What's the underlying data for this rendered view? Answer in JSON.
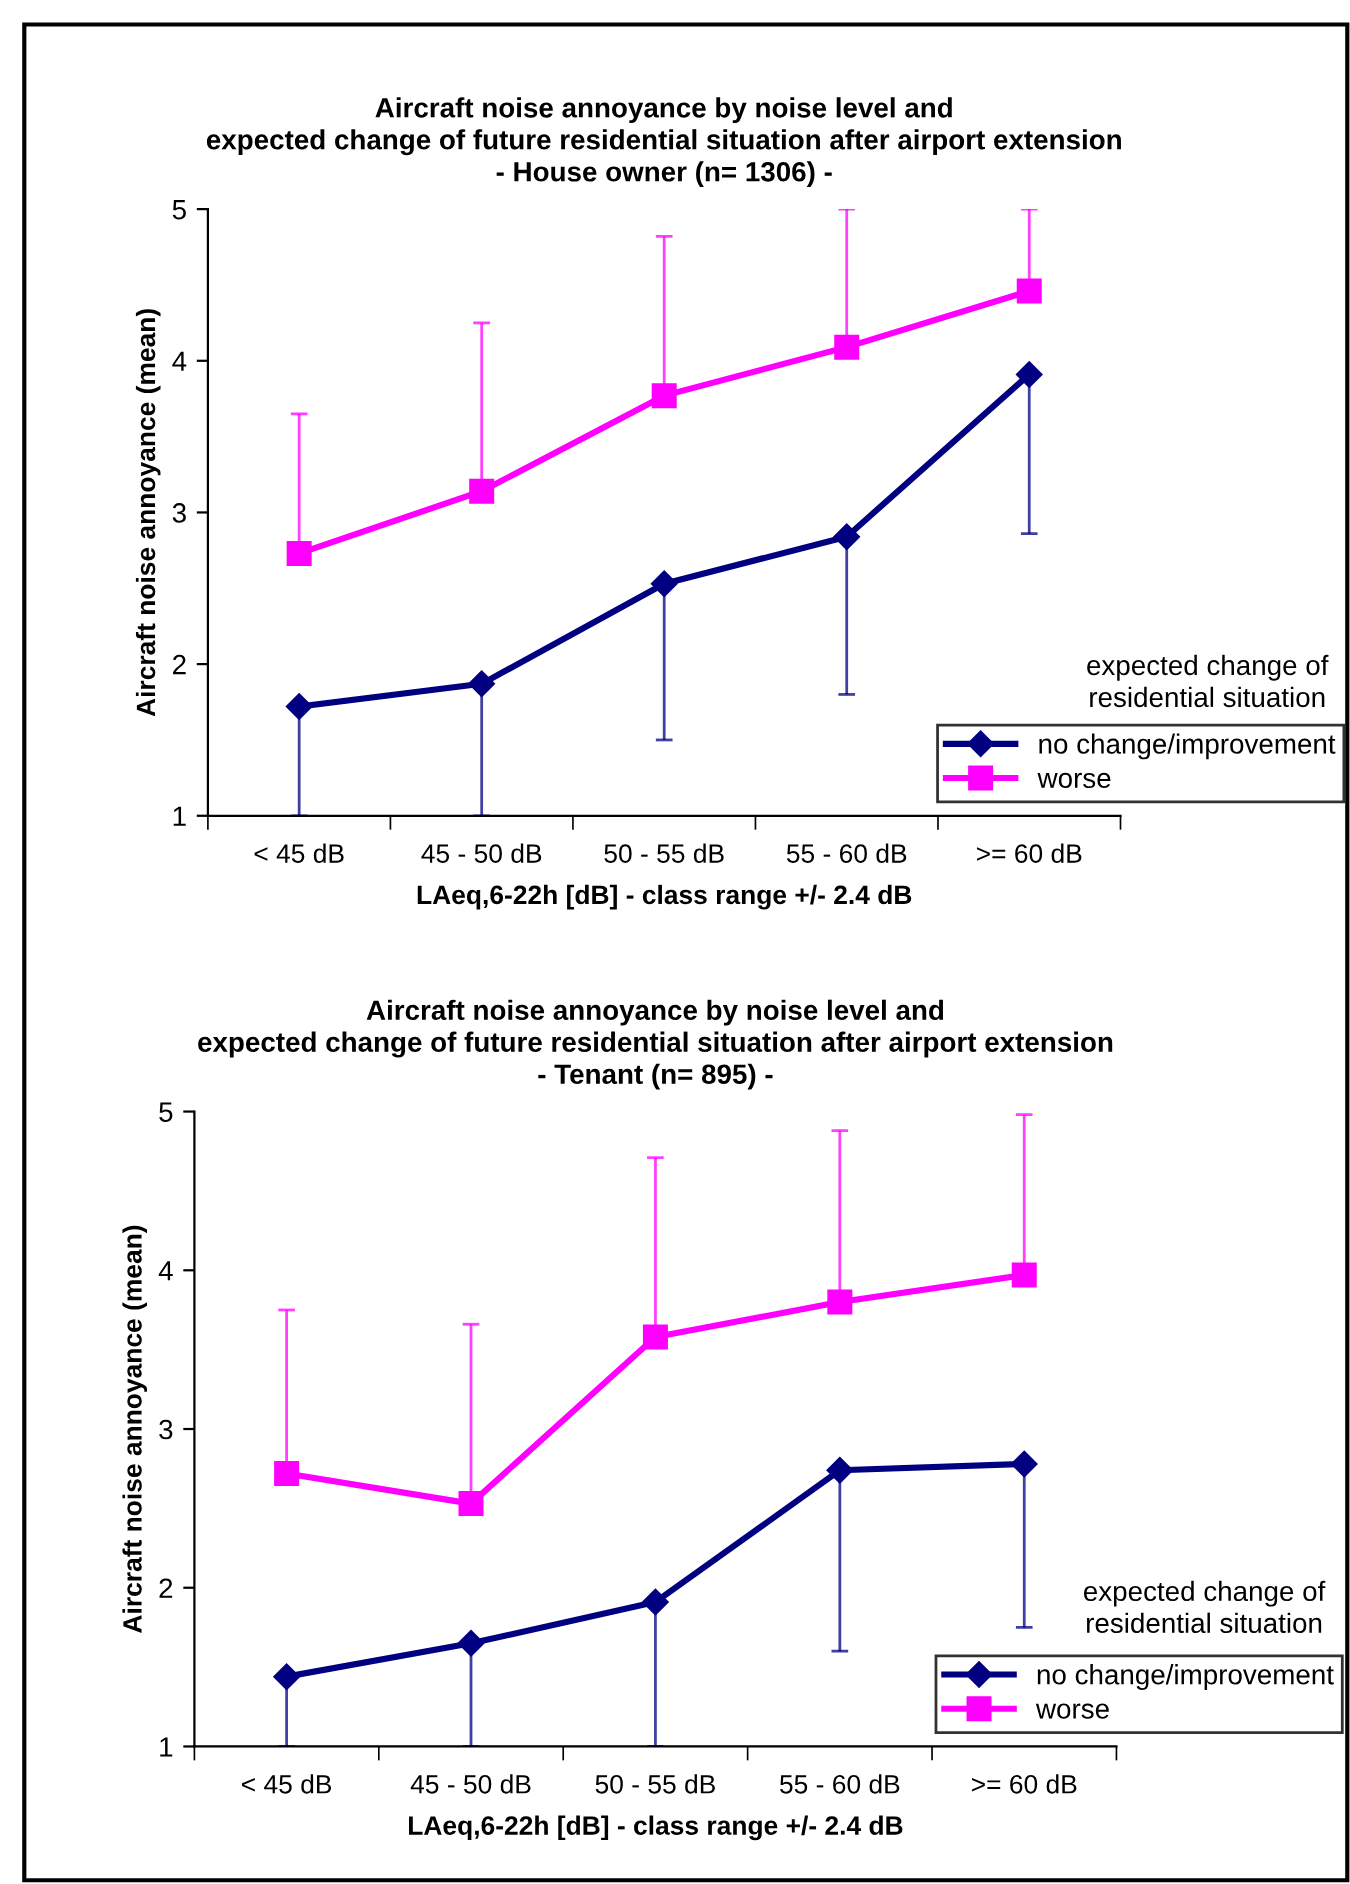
{
  "chart_data": [
    {
      "type": "line",
      "title": "Aircraft noise annoyance by noise level and\nexpected change of future residential situation after airport extension\n- House owner (n= 1306) -",
      "xlabel": "LAeq,6-22h [dB] - class range +/- 2.4 dB",
      "ylabel": "Aircraft noise annoyance (mean)",
      "legend_title": "expected change of\nresidential situation",
      "legend": "bottom right",
      "grid": false,
      "categories": [
        "< 45 dB",
        "45 - 50 dB",
        "50 - 55 dB",
        "55 - 60 dB",
        ">= 60 dB"
      ],
      "ylim": [
        1,
        5
      ],
      "yticks": [
        1,
        2,
        3,
        4,
        5
      ],
      "series": [
        {
          "name": "no change/improvement",
          "color": "#000080",
          "marker": "diamond",
          "values": [
            1.72,
            1.87,
            2.53,
            2.84,
            3.91
          ],
          "errors": [
            [
              1,
              1.72
            ],
            [
              1,
              1.87
            ],
            [
              1.5,
              2.53
            ],
            [
              1.8,
              2.84
            ],
            [
              2.86,
              3.91
            ]
          ]
        },
        {
          "name": "worse",
          "color": "#ff00ff",
          "marker": "square",
          "values": [
            2.73,
            3.14,
            3.77,
            4.09,
            4.46
          ],
          "errors": [
            [
              2.73,
              3.65
            ],
            [
              3.14,
              4.25
            ],
            [
              3.77,
              4.82
            ],
            [
              4.09,
              5
            ],
            [
              4.46,
              5
            ]
          ]
        }
      ]
    },
    {
      "type": "line",
      "title": "Aircraft noise annoyance by noise level and\nexpected change of future residential situation after airport extension\n- Tenant (n= 895) -",
      "xlabel": "LAeq,6-22h [dB] - class range +/- 2.4 dB",
      "ylabel": "Aircraft noise annoyance (mean)",
      "legend_title": "expected change of\nresidential situation",
      "legend": "bottom right",
      "grid": false,
      "categories": [
        "< 45 dB",
        "45 - 50 dB",
        "50 - 55 dB",
        "55 - 60 dB",
        ">= 60 dB"
      ],
      "ylim": [
        1,
        5
      ],
      "yticks": [
        1,
        2,
        3,
        4,
        5
      ],
      "series": [
        {
          "name": "no change/improvement",
          "color": "#000080",
          "marker": "diamond",
          "values": [
            1.44,
            1.65,
            1.91,
            2.74,
            2.78
          ],
          "errors": [
            [
              1,
              1.44
            ],
            [
              1,
              1.65
            ],
            [
              1,
              1.91
            ],
            [
              1.6,
              2.74
            ],
            [
              1.75,
              2.78
            ]
          ]
        },
        {
          "name": "worse",
          "color": "#ff00ff",
          "marker": "square",
          "values": [
            2.72,
            2.53,
            3.58,
            3.8,
            3.97
          ],
          "errors": [
            [
              2.72,
              3.75
            ],
            [
              2.53,
              3.66
            ],
            [
              3.58,
              4.71
            ],
            [
              3.8,
              4.88
            ],
            [
              3.97,
              4.98
            ]
          ]
        }
      ]
    }
  ]
}
